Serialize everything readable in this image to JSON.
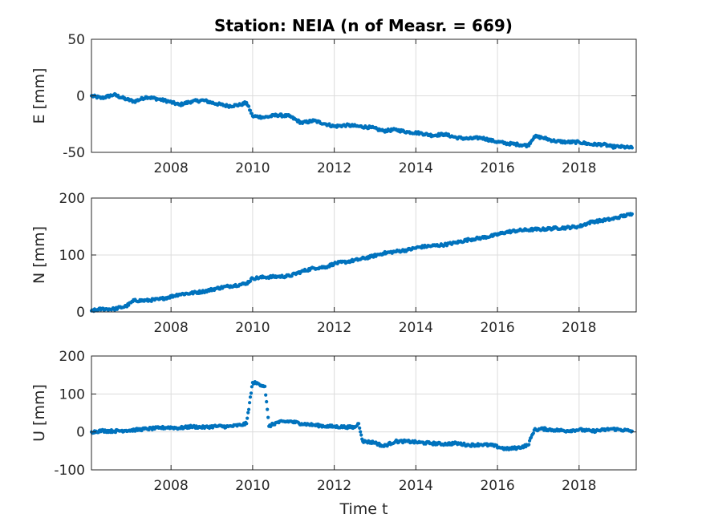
{
  "colors": {
    "series": "#0072BD",
    "axis": "#262626",
    "grid": "#dcdcdc"
  },
  "chart_data": [
    {
      "type": "scatter",
      "title": "Station: NEIA (n of Measr. = 669)",
      "ylabel": "E [mm]",
      "xlabel": "",
      "xlim": [
        2006.05,
        2019.4
      ],
      "ylim": [
        -50,
        50
      ],
      "xticks": [
        2008,
        2010,
        2012,
        2014,
        2016,
        2018
      ],
      "yticks": [
        -50,
        0,
        50
      ],
      "grid": true,
      "series": [
        {
          "points": [
            [
              2006.05,
              0
            ],
            [
              2006.3,
              -2
            ],
            [
              2006.6,
              1
            ],
            [
              2006.9,
              -3
            ],
            [
              2007.1,
              -5
            ],
            [
              2007.4,
              -1
            ],
            [
              2007.7,
              -3
            ],
            [
              2007.95,
              -5
            ],
            [
              2008.2,
              -8
            ],
            [
              2008.5,
              -5
            ],
            [
              2008.8,
              -4
            ],
            [
              2009.1,
              -7
            ],
            [
              2009.4,
              -9
            ],
            [
              2009.7,
              -8
            ],
            [
              2009.85,
              -6
            ],
            [
              2010.0,
              -18
            ],
            [
              2010.3,
              -19
            ],
            [
              2010.6,
              -17
            ],
            [
              2010.9,
              -18
            ],
            [
              2011.2,
              -24
            ],
            [
              2011.5,
              -22
            ],
            [
              2011.8,
              -25
            ],
            [
              2012.0,
              -27
            ],
            [
              2012.3,
              -26
            ],
            [
              2012.6,
              -27
            ],
            [
              2012.9,
              -28
            ],
            [
              2013.2,
              -31
            ],
            [
              2013.5,
              -30
            ],
            [
              2013.8,
              -32
            ],
            [
              2014.1,
              -33
            ],
            [
              2014.4,
              -35
            ],
            [
              2014.7,
              -34
            ],
            [
              2015.0,
              -37
            ],
            [
              2015.3,
              -38
            ],
            [
              2015.6,
              -37
            ],
            [
              2015.9,
              -40
            ],
            [
              2016.2,
              -42
            ],
            [
              2016.5,
              -43
            ],
            [
              2016.75,
              -44
            ],
            [
              2016.9,
              -36
            ],
            [
              2017.1,
              -37
            ],
            [
              2017.4,
              -40
            ],
            [
              2017.7,
              -41
            ],
            [
              2018.0,
              -41
            ],
            [
              2018.3,
              -43
            ],
            [
              2018.6,
              -43
            ],
            [
              2018.8,
              -45
            ],
            [
              2019.0,
              -45
            ],
            [
              2019.3,
              -46
            ]
          ]
        }
      ]
    },
    {
      "type": "scatter",
      "title": "",
      "ylabel": "N [mm]",
      "xlabel": "",
      "xlim": [
        2006.05,
        2019.4
      ],
      "ylim": [
        0,
        200
      ],
      "xticks": [
        2008,
        2010,
        2012,
        2014,
        2016,
        2018
      ],
      "yticks": [
        0,
        100,
        200
      ],
      "grid": true,
      "series": [
        {
          "points": [
            [
              2006.05,
              2
            ],
            [
              2006.3,
              5
            ],
            [
              2006.6,
              5
            ],
            [
              2006.9,
              10
            ],
            [
              2007.1,
              20
            ],
            [
              2007.4,
              20
            ],
            [
              2007.7,
              22
            ],
            [
              2007.95,
              26
            ],
            [
              2008.2,
              31
            ],
            [
              2008.5,
              33
            ],
            [
              2008.8,
              36
            ],
            [
              2009.1,
              41
            ],
            [
              2009.4,
              45
            ],
            [
              2009.7,
              48
            ],
            [
              2009.85,
              50
            ],
            [
              2010.0,
              59
            ],
            [
              2010.3,
              61
            ],
            [
              2010.6,
              62
            ],
            [
              2010.9,
              63
            ],
            [
              2011.2,
              71
            ],
            [
              2011.5,
              77
            ],
            [
              2011.8,
              79
            ],
            [
              2012.0,
              85
            ],
            [
              2012.3,
              88
            ],
            [
              2012.6,
              92
            ],
            [
              2012.9,
              97
            ],
            [
              2013.2,
              103
            ],
            [
              2013.5,
              106
            ],
            [
              2013.8,
              109
            ],
            [
              2014.1,
              114
            ],
            [
              2014.4,
              116
            ],
            [
              2014.7,
              118
            ],
            [
              2015.0,
              122
            ],
            [
              2015.3,
              127
            ],
            [
              2015.6,
              130
            ],
            [
              2015.9,
              134
            ],
            [
              2016.2,
              140
            ],
            [
              2016.5,
              143
            ],
            [
              2016.75,
              144
            ],
            [
              2016.9,
              145
            ],
            [
              2017.1,
              145
            ],
            [
              2017.4,
              147
            ],
            [
              2017.7,
              148
            ],
            [
              2018.0,
              150
            ],
            [
              2018.3,
              158
            ],
            [
              2018.6,
              161
            ],
            [
              2018.8,
              163
            ],
            [
              2019.0,
              167
            ],
            [
              2019.3,
              172
            ]
          ]
        }
      ]
    },
    {
      "type": "scatter",
      "title": "",
      "ylabel": "U [mm]",
      "xlabel": "Time t",
      "xlim": [
        2006.05,
        2019.4
      ],
      "ylim": [
        -100,
        200
      ],
      "xticks": [
        2008,
        2010,
        2012,
        2014,
        2016,
        2018
      ],
      "yticks": [
        -100,
        0,
        100,
        200
      ],
      "grid": true,
      "series": [
        {
          "points": [
            [
              2006.05,
              0
            ],
            [
              2006.3,
              3
            ],
            [
              2006.6,
              2
            ],
            [
              2006.9,
              4
            ],
            [
              2007.1,
              5
            ],
            [
              2007.4,
              8
            ],
            [
              2007.7,
              10
            ],
            [
              2007.95,
              12
            ],
            [
              2008.2,
              10
            ],
            [
              2008.5,
              14
            ],
            [
              2008.8,
              12
            ],
            [
              2009.1,
              15
            ],
            [
              2009.4,
              14
            ],
            [
              2009.7,
              18
            ],
            [
              2009.85,
              22
            ],
            [
              2010.0,
              130
            ],
            [
              2010.15,
              127
            ],
            [
              2010.3,
              120
            ],
            [
              2010.4,
              15
            ],
            [
              2010.6,
              25
            ],
            [
              2010.9,
              28
            ],
            [
              2011.2,
              22
            ],
            [
              2011.5,
              18
            ],
            [
              2011.8,
              15
            ],
            [
              2012.0,
              14
            ],
            [
              2012.3,
              13
            ],
            [
              2012.5,
              12
            ],
            [
              2012.6,
              22
            ],
            [
              2012.7,
              -25
            ],
            [
              2013.0,
              -28
            ],
            [
              2013.2,
              -38
            ],
            [
              2013.5,
              -25
            ],
            [
              2013.8,
              -25
            ],
            [
              2014.1,
              -28
            ],
            [
              2014.4,
              -30
            ],
            [
              2014.7,
              -32
            ],
            [
              2015.0,
              -30
            ],
            [
              2015.3,
              -35
            ],
            [
              2015.6,
              -33
            ],
            [
              2015.9,
              -36
            ],
            [
              2016.2,
              -45
            ],
            [
              2016.5,
              -42
            ],
            [
              2016.75,
              -35
            ],
            [
              2016.9,
              5
            ],
            [
              2017.1,
              8
            ],
            [
              2017.4,
              5
            ],
            [
              2017.7,
              3
            ],
            [
              2018.0,
              6
            ],
            [
              2018.3,
              2
            ],
            [
              2018.6,
              5
            ],
            [
              2018.8,
              8
            ],
            [
              2019.0,
              6
            ],
            [
              2019.3,
              2
            ]
          ]
        }
      ]
    }
  ]
}
